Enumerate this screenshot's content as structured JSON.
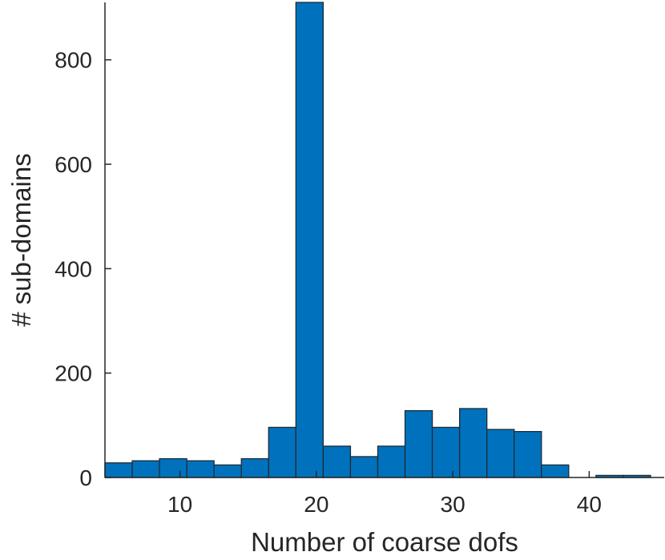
{
  "chart_data": {
    "type": "bar",
    "subtype": "histogram",
    "title": "",
    "xlabel": "Number of coarse dofs",
    "ylabel": "# sub-domains",
    "xlim": [
      4.5,
      45.5
    ],
    "ylim": [
      0,
      910
    ],
    "xticks": [
      10,
      20,
      30,
      40
    ],
    "yticks": [
      0,
      200,
      400,
      600,
      800
    ],
    "bin_edges": [
      4.5,
      6.5,
      8.5,
      10.5,
      12.5,
      14.5,
      16.5,
      18.5,
      20.5,
      22.5,
      24.5,
      26.5,
      28.5,
      30.5,
      32.5,
      34.5,
      36.5,
      38.5,
      40.5,
      42.5,
      44.5
    ],
    "values": [
      28,
      32,
      36,
      32,
      24,
      36,
      96,
      910,
      60,
      40,
      60,
      128,
      96,
      132,
      92,
      88,
      24,
      0,
      4,
      4
    ],
    "bar_color": "#0072bd",
    "grid": false,
    "legend": "none"
  }
}
